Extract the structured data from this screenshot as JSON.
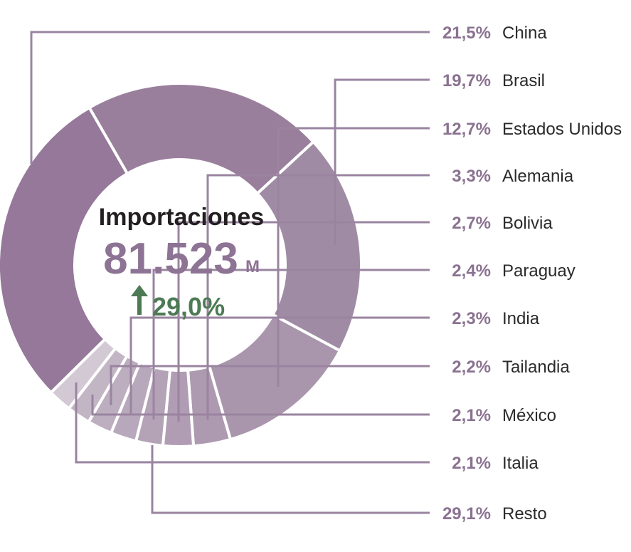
{
  "chart_data": {
    "type": "pie",
    "variant": "donut",
    "center": {
      "title": "Importaciones",
      "value": "81.523",
      "unit": "M",
      "growth": "29,0%",
      "growth_arrow": "arrow-up-icon"
    },
    "slices": [
      {
        "label": "China",
        "value": 21.5,
        "value_label": "21,5%",
        "color": "#9a7f9c"
      },
      {
        "label": "Brasil",
        "value": 19.7,
        "value_label": "19,7%",
        "color": "#a08ba5"
      },
      {
        "label": "Estados Unidos",
        "value": 12.7,
        "value_label": "12,7%",
        "color": "#a996ad"
      },
      {
        "label": "Alemania",
        "value": 3.3,
        "value_label": "3,3%",
        "color": "#ad99b0"
      },
      {
        "label": "Bolivia",
        "value": 2.7,
        "value_label": "2,7%",
        "color": "#b09db4"
      },
      {
        "label": "Paraguay",
        "value": 2.4,
        "value_label": "2,4%",
        "color": "#b4a2b7"
      },
      {
        "label": "India",
        "value": 2.3,
        "value_label": "2,3%",
        "color": "#b8a8bb"
      },
      {
        "label": "Tailandia",
        "value": 2.2,
        "value_label": "2,2%",
        "color": "#bcaebf"
      },
      {
        "label": "México",
        "value": 2.1,
        "value_label": "2,1%",
        "color": "#c2b5c4"
      },
      {
        "label": "Italia",
        "value": 2.1,
        "value_label": "2,1%",
        "color": "#d3c9d5"
      },
      {
        "label": "Resto",
        "value": 29.1,
        "value_label": "29,1%",
        "color": "#95789a"
      }
    ],
    "colors": {
      "leader": "#9a84a0",
      "percent_text": "#8a7291",
      "center_value": "#8d7394",
      "growth": "#4d7a55",
      "separator": "#ffffff"
    }
  }
}
